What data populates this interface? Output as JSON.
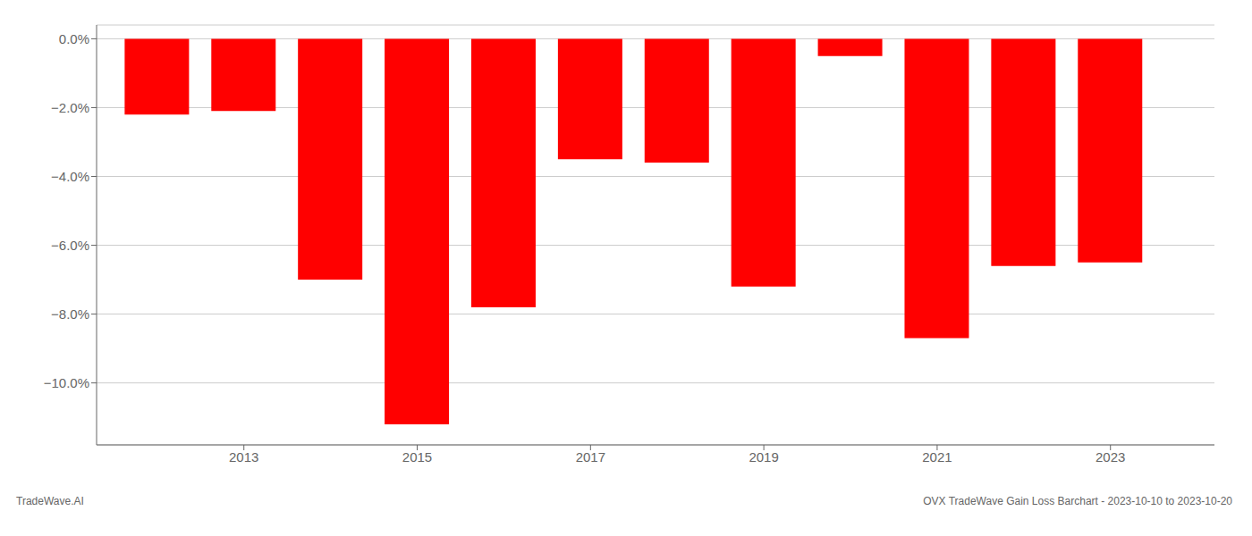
{
  "chart_data": {
    "type": "bar",
    "x": [
      2012,
      2013,
      2014,
      2015,
      2016,
      2017,
      2018,
      2019,
      2020,
      2021,
      2022,
      2023
    ],
    "values": [
      -2.2,
      -2.1,
      -7.0,
      -11.2,
      -7.8,
      -3.5,
      -3.6,
      -7.2,
      -0.5,
      -8.7,
      -6.6,
      -6.5
    ],
    "color": "#ff0000",
    "xlim": [
      2011.3,
      2024.2
    ],
    "xticks": [
      2013,
      2015,
      2017,
      2019,
      2021,
      2023
    ],
    "ylim": [
      -11.8,
      0.4
    ],
    "yticks": [
      {
        "value": 0.0,
        "label": "0.0%"
      },
      {
        "value": -2.0,
        "label": "−2.0%"
      },
      {
        "value": -4.0,
        "label": "−4.0%"
      },
      {
        "value": -6.0,
        "label": "−6.0%"
      },
      {
        "value": -8.0,
        "label": "−8.0%"
      },
      {
        "value": -10.0,
        "label": "−10.0%"
      }
    ],
    "grid": true,
    "annotations": [
      "TradeWave.AI",
      "OVX TradeWave Gain Loss Barchart - 2023-10-10 to 2023-10-20"
    ]
  }
}
